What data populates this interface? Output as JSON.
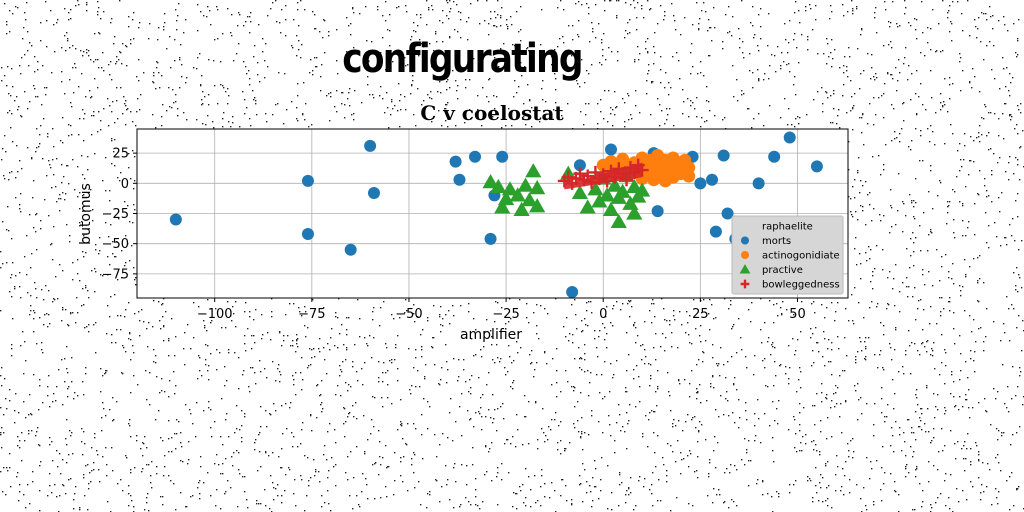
{
  "heading": "configurating",
  "chart_data": {
    "type": "scatter",
    "title": "C v coelostat",
    "xlabel": "amplifier",
    "ylabel": "butomus",
    "xlim": [
      -120,
      63
    ],
    "ylim": [
      -95,
      45
    ],
    "xticks": [
      -100,
      -75,
      -50,
      -25,
      0,
      25,
      50
    ],
    "xtick_labels": [
      "−100",
      "−75",
      "−50",
      "−25",
      "0",
      "25",
      "50"
    ],
    "yticks": [
      25,
      0,
      -25,
      -50,
      -75
    ],
    "ytick_labels": [
      "25",
      "0",
      "−25",
      "−50",
      "−75"
    ],
    "grid": true,
    "legend_position": "lower-right",
    "series": [
      {
        "name": "raphaelite",
        "marker": "none",
        "color": "#cccccc",
        "points": []
      },
      {
        "name": "morts",
        "marker": "circle",
        "color": "#1f77b4",
        "points": [
          [
            -110,
            -30
          ],
          [
            -76,
            2
          ],
          [
            -76,
            -42
          ],
          [
            -60,
            31
          ],
          [
            -59,
            -8
          ],
          [
            -65,
            -55
          ],
          [
            -38,
            18
          ],
          [
            -37,
            3
          ],
          [
            -33,
            22
          ],
          [
            -29,
            -46
          ],
          [
            -28,
            -10
          ],
          [
            -26,
            22
          ],
          [
            -8,
            -90
          ],
          [
            -6,
            15
          ],
          [
            2,
            28
          ],
          [
            13,
            25
          ],
          [
            14,
            -23
          ],
          [
            23,
            22
          ],
          [
            25,
            0
          ],
          [
            28,
            3
          ],
          [
            29,
            -40
          ],
          [
            31,
            23
          ],
          [
            32,
            -25
          ],
          [
            34,
            -46
          ],
          [
            40,
            0
          ],
          [
            44,
            22
          ],
          [
            48,
            38
          ],
          [
            55,
            14
          ]
        ]
      },
      {
        "name": "actinogonidiate",
        "marker": "circle",
        "color": "#ff7f0e",
        "points": [
          [
            0,
            15
          ],
          [
            1,
            10
          ],
          [
            2,
            18
          ],
          [
            3,
            8
          ],
          [
            4,
            14
          ],
          [
            5,
            20
          ],
          [
            6,
            6
          ],
          [
            7,
            12
          ],
          [
            8,
            17
          ],
          [
            9,
            9
          ],
          [
            10,
            21
          ],
          [
            10,
            4
          ],
          [
            11,
            14
          ],
          [
            12,
            8
          ],
          [
            12,
            19
          ],
          [
            13,
            3
          ],
          [
            13,
            11
          ],
          [
            14,
            16
          ],
          [
            14,
            23
          ],
          [
            15,
            6
          ],
          [
            15,
            12
          ],
          [
            16,
            19
          ],
          [
            16,
            2
          ],
          [
            17,
            9
          ],
          [
            17,
            15
          ],
          [
            18,
            21
          ],
          [
            18,
            5
          ],
          [
            19,
            12
          ],
          [
            19,
            17
          ],
          [
            20,
            8
          ],
          [
            20,
            14
          ],
          [
            21,
            10
          ],
          [
            21,
            19
          ],
          [
            22,
            6
          ],
          [
            22,
            13
          ]
        ]
      },
      {
        "name": "practive",
        "marker": "triangle",
        "color": "#2ca02c",
        "points": [
          [
            -29,
            1
          ],
          [
            -27,
            -3
          ],
          [
            -26,
            -20
          ],
          [
            -25,
            -13
          ],
          [
            -24,
            -5
          ],
          [
            -22,
            -10
          ],
          [
            -21,
            -22
          ],
          [
            -20,
            -2
          ],
          [
            -19,
            -14
          ],
          [
            -18,
            10
          ],
          [
            -17,
            -4
          ],
          [
            -17,
            -19
          ],
          [
            -9,
            8
          ],
          [
            -6,
            -8
          ],
          [
            -4,
            -20
          ],
          [
            -2,
            -5
          ],
          [
            -1,
            -15
          ],
          [
            0,
            4
          ],
          [
            1,
            -10
          ],
          [
            2,
            -22
          ],
          [
            3,
            -2
          ],
          [
            4,
            -12
          ],
          [
            4,
            -32
          ],
          [
            5,
            -7
          ],
          [
            6,
            6
          ],
          [
            7,
            -17
          ],
          [
            8,
            -3
          ],
          [
            8,
            -25
          ],
          [
            9,
            -11
          ],
          [
            10,
            -6
          ]
        ]
      },
      {
        "name": "bowleggedness",
        "marker": "plus",
        "color": "#d62728",
        "points": [
          [
            -10,
            2
          ],
          [
            -9,
            5
          ],
          [
            -8,
            0
          ],
          [
            -7,
            4
          ],
          [
            -6,
            8
          ],
          [
            -5,
            3
          ],
          [
            -4,
            6
          ],
          [
            -3,
            1
          ],
          [
            -2,
            9
          ],
          [
            -1,
            4
          ],
          [
            0,
            7
          ],
          [
            1,
            2
          ],
          [
            2,
            10
          ],
          [
            3,
            5
          ],
          [
            4,
            12
          ],
          [
            5,
            8
          ],
          [
            6,
            3
          ],
          [
            7,
            13
          ],
          [
            8,
            9
          ],
          [
            9,
            15
          ],
          [
            10,
            11
          ]
        ]
      }
    ]
  }
}
